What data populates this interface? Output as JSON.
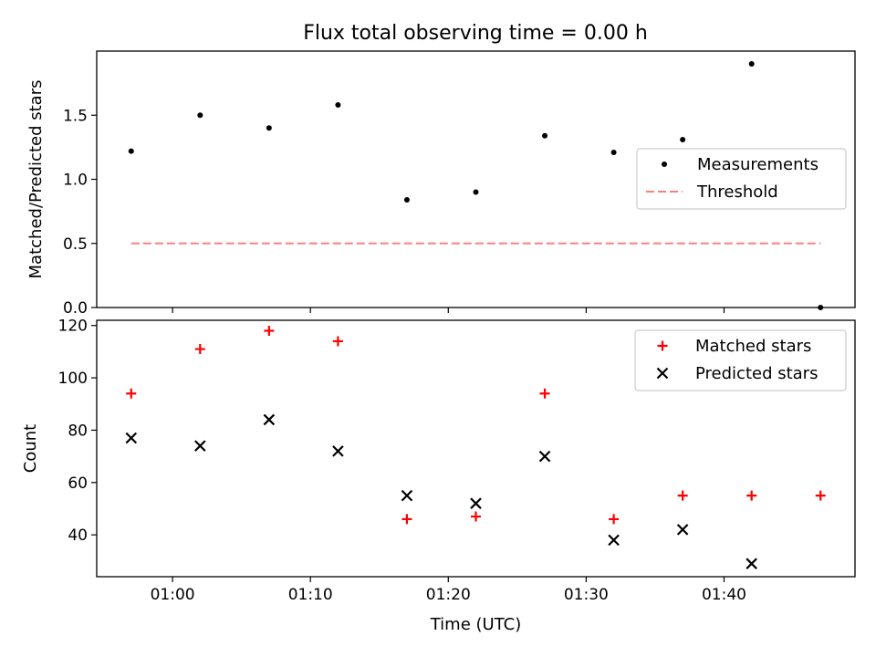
{
  "figure": {
    "title": "Flux total observing time = 0.00 h"
  },
  "chart_data": [
    {
      "type": "scatter",
      "ylabel": "Matched/Predicted stars",
      "xlim": [
        "00:54:30",
        "01:49:30"
      ],
      "ylim": [
        0,
        2.0
      ],
      "yticks": [
        0.0,
        0.5,
        1.0,
        1.5
      ],
      "ytick_labels": [
        "0.0",
        "0.5",
        "1.0",
        "1.5"
      ],
      "grid": false,
      "legend": "center-right",
      "series": [
        {
          "name": "Measurements",
          "marker": "dot",
          "color": "#000000",
          "x": [
            "00:57",
            "01:02",
            "01:07",
            "01:12",
            "01:17",
            "01:22",
            "01:27",
            "01:32",
            "01:37",
            "01:42",
            "01:47"
          ],
          "y": [
            1.22,
            1.5,
            1.4,
            1.58,
            0.84,
            0.9,
            1.34,
            1.21,
            1.31,
            1.9,
            0.0
          ]
        },
        {
          "name": "Threshold",
          "type": "line",
          "style": "dashed",
          "color": "#ff7f7f",
          "x": [
            "00:57",
            "01:47"
          ],
          "y": [
            0.5,
            0.5
          ]
        }
      ]
    },
    {
      "type": "scatter",
      "xlabel": "Time (UTC)",
      "ylabel": "Count",
      "xlim": [
        "00:54:30",
        "01:49:30"
      ],
      "ylim": [
        24,
        122
      ],
      "xticks": [
        "01:00",
        "01:10",
        "01:20",
        "01:30",
        "01:40"
      ],
      "yticks": [
        40,
        60,
        80,
        100,
        120
      ],
      "ytick_labels": [
        "40",
        "60",
        "80",
        "100",
        "120"
      ],
      "grid": false,
      "legend": "top-right",
      "series": [
        {
          "name": "Matched stars",
          "marker": "plus",
          "color": "#ff0000",
          "x": [
            "00:57",
            "01:02",
            "01:07",
            "01:12",
            "01:17",
            "01:22",
            "01:27",
            "01:32",
            "01:37",
            "01:42",
            "01:47"
          ],
          "y": [
            94,
            111,
            118,
            114,
            46,
            47,
            94,
            46,
            55,
            55,
            55
          ]
        },
        {
          "name": "Predicted stars",
          "marker": "x",
          "color": "#000000",
          "x": [
            "00:57",
            "01:02",
            "01:07",
            "01:12",
            "01:17",
            "01:22",
            "01:27",
            "01:32",
            "01:37",
            "01:42"
          ],
          "y": [
            77,
            74,
            84,
            72,
            55,
            52,
            70,
            38,
            42,
            29
          ]
        }
      ]
    }
  ]
}
